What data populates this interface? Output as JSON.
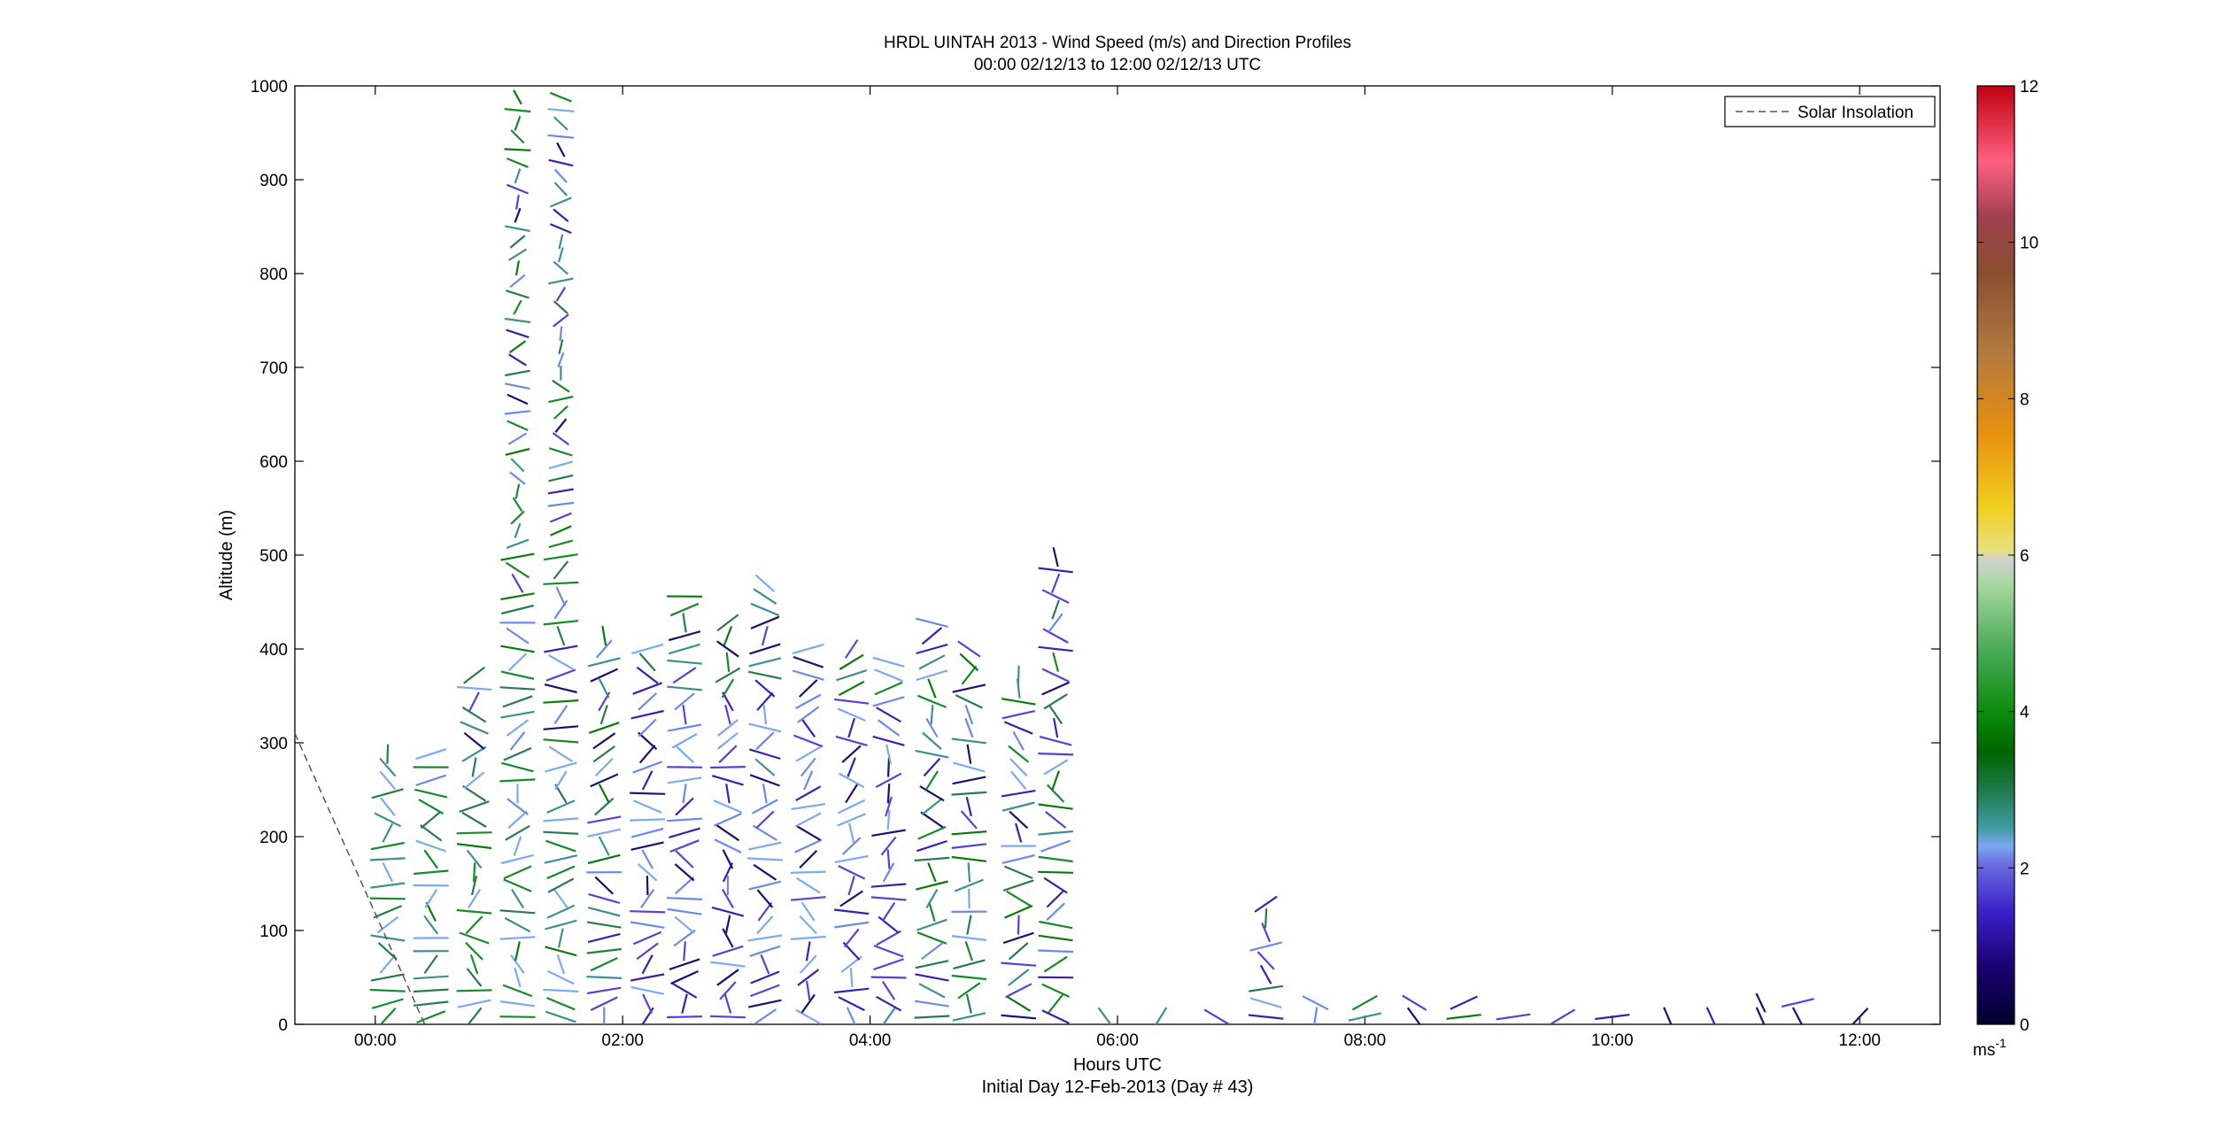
{
  "chart_data": {
    "type": "scatter",
    "title": "HRDL UINTAH 2013 - Wind Speed (m/s) and Direction Profiles",
    "subtitle": "00:00 02/12/13 to 12:00 02/12/13  UTC",
    "xlabel": "Hours UTC",
    "xlabel2": "Initial Day 12-Feb-2013 (Day # 43)",
    "ylabel": "Altitude (m)",
    "xlim": [
      -0.65,
      12.65
    ],
    "ylim": [
      0,
      1000
    ],
    "xticks": [
      0,
      2,
      4,
      6,
      8,
      10,
      12
    ],
    "xtick_labels": [
      "00:00",
      "02:00",
      "04:00",
      "06:00",
      "08:00",
      "10:00",
      "12:00"
    ],
    "yticks": [
      0,
      100,
      200,
      300,
      400,
      500,
      600,
      700,
      800,
      900,
      1000
    ],
    "ytick_labels": [
      "0",
      "100",
      "200",
      "300",
      "400",
      "500",
      "600",
      "700",
      "800",
      "900",
      "1000"
    ],
    "legend": {
      "entries": [
        "Solar Insolation"
      ],
      "position": "top-right"
    },
    "colorbar": {
      "ticks": [
        0,
        2,
        4,
        6,
        8,
        10,
        12
      ],
      "tick_labels": [
        "0",
        "2",
        "4",
        "6",
        "8",
        "10",
        "12"
      ],
      "unit": "ms-1",
      "range": [
        0,
        12
      ]
    },
    "solar_insolation": {
      "x": [
        -0.65,
        0.4
      ],
      "y": [
        310,
        0
      ]
    },
    "profile_hours": [
      0.1,
      0.45,
      0.8,
      1.15,
      1.5,
      1.85,
      2.2,
      2.5,
      2.85,
      3.15,
      3.5,
      3.85,
      4.15,
      4.5,
      4.8,
      5.2,
      5.5,
      5.9,
      6.35,
      6.8,
      7.2,
      7.6,
      8.0,
      8.4,
      8.8,
      9.2,
      9.6,
      10.0,
      10.45,
      10.8,
      11.2,
      11.5,
      12.0
    ],
    "profile_tops_m": [
      290,
      295,
      380,
      1000,
      1000,
      420,
      410,
      460,
      430,
      470,
      410,
      400,
      395,
      430,
      410,
      380,
      500,
      20,
      20,
      15,
      130,
      30,
      30,
      30,
      25,
      15,
      15,
      15,
      15,
      15,
      25,
      25,
      20
    ],
    "note_wind_barbs": "Each short segment is a wind vector at a given altitude; colour encodes speed (0-12 m/s)"
  }
}
